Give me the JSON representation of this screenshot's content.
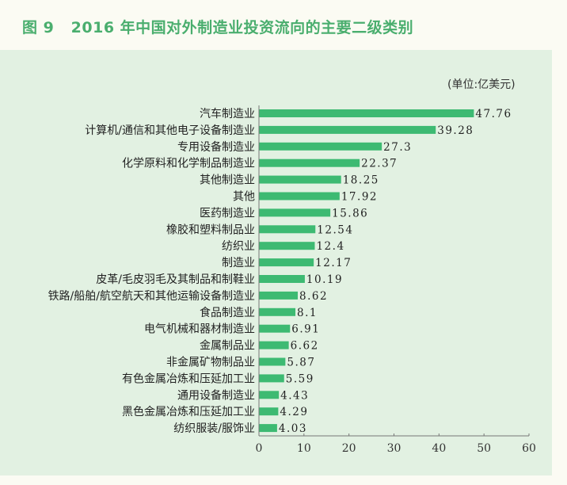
{
  "chart_data": {
    "type": "bar",
    "orientation": "horizontal",
    "title": "图 9   2016 年中国对外制造业投资流向的主要二级类别",
    "unit": "(单位:亿美元)",
    "categories": [
      "汽车制造业",
      "计算机/通信和其他电子设备制造业",
      "专用设备制造业",
      "化学原料和化学制品制造业",
      "其他制造业",
      "其他",
      "医药制造业",
      "橡胶和塑料制品业",
      "纺织业",
      "制造业",
      "皮革/毛皮羽毛及其制品和制鞋业",
      "铁路/船舶/航空航天和其他运输设备制造业",
      "食品制造业",
      "电气机械和器材制造业",
      "金属制品业",
      "非金属矿物制品业",
      "有色金属冶炼和压延加工业",
      "通用设备制造业",
      "黑色金属冶炼和压延加工业",
      "纺织服装/服饰业"
    ],
    "values": [
      47.76,
      39.28,
      27.3,
      22.37,
      18.25,
      17.92,
      15.86,
      12.54,
      12.4,
      12.17,
      10.19,
      8.62,
      8.1,
      6.91,
      6.62,
      5.87,
      5.59,
      4.43,
      4.29,
      4.03
    ],
    "value_labels": [
      "47.76",
      "39.28",
      "27.3",
      "22.37",
      "18.25",
      "17.92",
      "15.86",
      "12.54",
      "12.4",
      "12.17",
      "10.19",
      "8.62",
      "8.1",
      "6.91",
      "6.62",
      "5.87",
      "5.59",
      "4.43",
      "4.29",
      "4.03"
    ],
    "xlim": [
      0,
      60
    ],
    "xticks": [
      "0",
      "10",
      "20",
      "30",
      "40",
      "50",
      "60"
    ],
    "grid": false,
    "colors": {
      "bar": "#3dba72",
      "title": "#4aae6e",
      "panel": "#e2f1e2",
      "background": "#fbfbf3"
    }
  }
}
